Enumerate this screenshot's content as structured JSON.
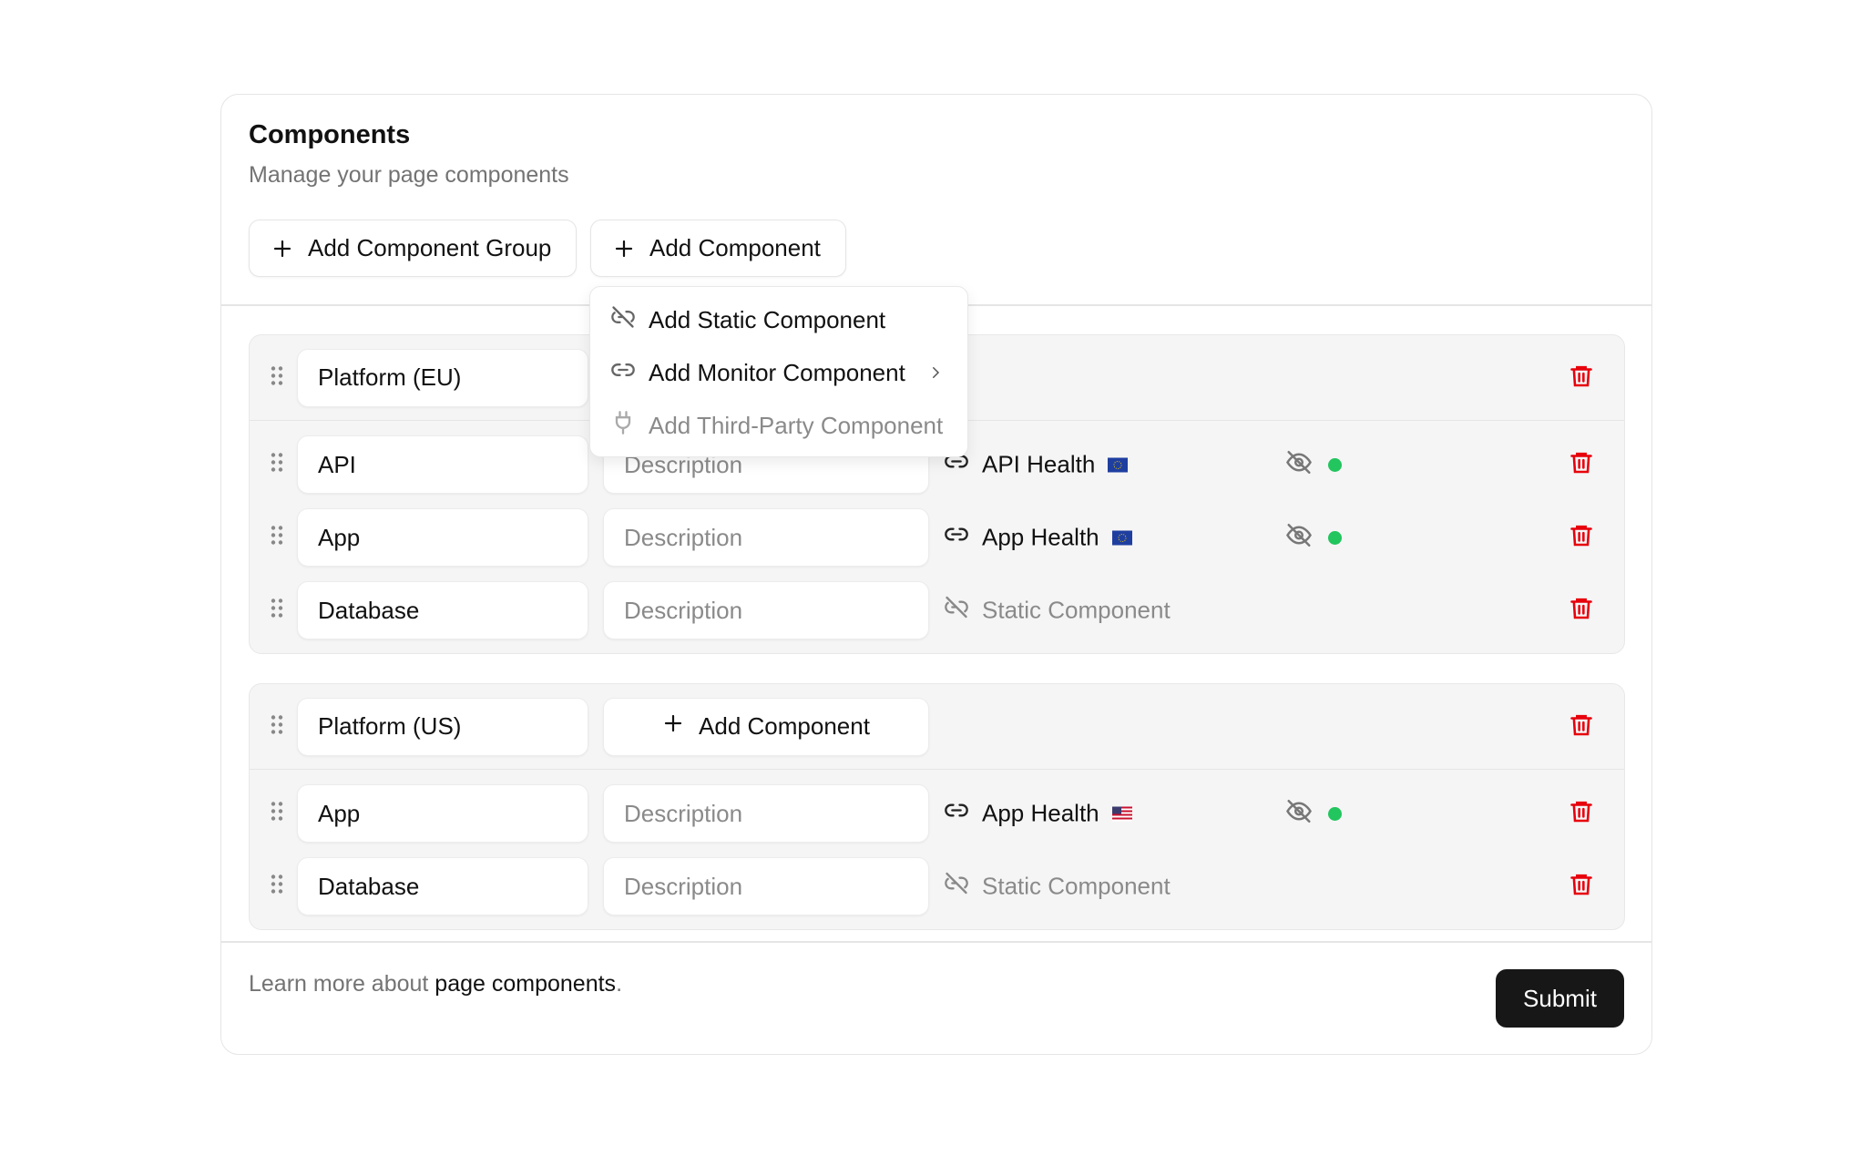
{
  "header": {
    "title": "Components",
    "subtitle": "Manage your page components"
  },
  "toolbar": {
    "add_group_label": "Add Component Group",
    "add_component_label": "Add Component"
  },
  "dropdown": {
    "items": [
      {
        "label": "Add Static Component",
        "icon": "unlink-icon",
        "disabled": false
      },
      {
        "label": "Add Monitor Component",
        "icon": "link-icon",
        "disabled": false,
        "submenu": true
      },
      {
        "label": "Add Third-Party Component",
        "icon": "plug-icon",
        "disabled": true
      }
    ]
  },
  "groups": [
    {
      "name": "Platform (EU)",
      "components": [
        {
          "name": "API",
          "description_placeholder": "Description",
          "type": "monitor",
          "monitor": "API Health",
          "flag": "eu",
          "hidden": true,
          "status": "up"
        },
        {
          "name": "App",
          "description_placeholder": "Description",
          "type": "monitor",
          "monitor": "App Health",
          "flag": "eu",
          "hidden": true,
          "status": "up"
        },
        {
          "name": "Database",
          "description_placeholder": "Description",
          "type": "static",
          "monitor": "Static Component"
        }
      ]
    },
    {
      "name": "Platform (US)",
      "add_component_label": "Add Component",
      "components": [
        {
          "name": "App",
          "description_placeholder": "Description",
          "type": "monitor",
          "monitor": "App Health",
          "flag": "us",
          "hidden": true,
          "status": "up"
        },
        {
          "name": "Database",
          "description_placeholder": "Description",
          "type": "static",
          "monitor": "Static Component"
        }
      ]
    }
  ],
  "footer": {
    "text": "Learn more about ",
    "link": "page components",
    "suffix": ".",
    "submit_label": "Submit"
  },
  "colors": {
    "status_up": "#22c55e",
    "delete": "#e7000b",
    "primary": "#171717"
  }
}
